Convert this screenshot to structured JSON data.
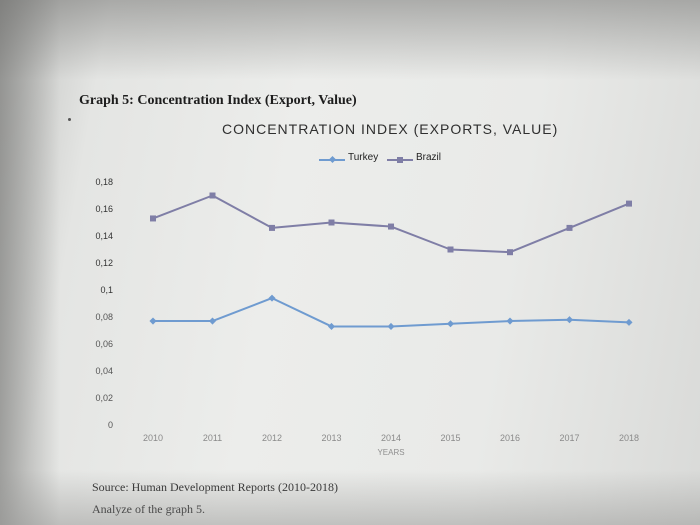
{
  "document": {
    "heading": "Graph 5: Concentration Index (Export, Value)",
    "source": "Source: Human Development Reports (2010-2018)",
    "prompt": "Analyze of the graph 5."
  },
  "chart_data": {
    "type": "line",
    "title": "CONCENTRATION INDEX (EXPORTS, VALUE)",
    "xlabel": "YEARS",
    "ylabel": "",
    "categories": [
      "2010",
      "2011",
      "2012",
      "2013",
      "2014",
      "2015",
      "2016",
      "2017",
      "2018"
    ],
    "y_ticks": [
      "0,18",
      "0,16",
      "0,14",
      "0,12",
      "0,1",
      "0,08",
      "0,06",
      "0,04",
      "0,02",
      "0"
    ],
    "ylim": [
      0,
      0.18
    ],
    "grid": false,
    "legend_position": "top-center",
    "series": [
      {
        "name": "Turkey",
        "color": "#6f9bd0",
        "marker": "diamond",
        "values": [
          0.077,
          0.077,
          0.094,
          0.073,
          0.073,
          0.075,
          0.077,
          0.078,
          0.076
        ]
      },
      {
        "name": "Brazil",
        "color": "#7f7ea6",
        "marker": "square",
        "values": [
          0.153,
          0.17,
          0.146,
          0.15,
          0.147,
          0.13,
          0.128,
          0.146,
          0.164
        ]
      }
    ]
  }
}
